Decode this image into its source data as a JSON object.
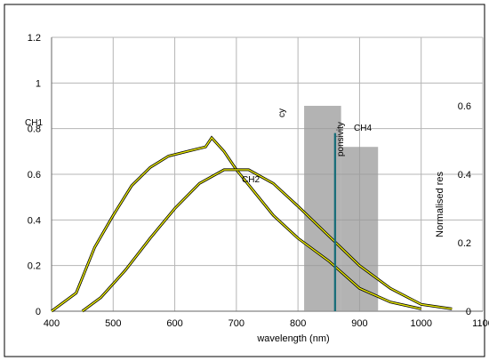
{
  "chart_data": {
    "type": "line",
    "title": "",
    "xlabel": "wavelength (nm)",
    "ylabel_right": "Normalised res",
    "y_left": {
      "ticks": [
        "0",
        "0.2",
        "0.4",
        "0.6",
        "0.8",
        "1",
        "1.2"
      ],
      "lim": [
        0,
        1.2
      ]
    },
    "y_right": {
      "ticks": [
        "0",
        "0.2",
        "0.4",
        "0.6"
      ],
      "lim": [
        0,
        0.8
      ]
    },
    "x_ticks": [
      "400",
      "500",
      "600",
      "700",
      "800",
      "900",
      "1000",
      "1100"
    ],
    "xlim": [
      400,
      1100
    ],
    "grid": true,
    "inline_labels": [
      "CH1",
      "CH2",
      "cy",
      "ponsivity",
      "CH4"
    ],
    "series": [
      {
        "label_ref": "CH2",
        "x": [
          400,
          440,
          470,
          500,
          530,
          560,
          590,
          620,
          650,
          660,
          680,
          700,
          730,
          760,
          800,
          850,
          900,
          950,
          1000
        ],
        "y": [
          0,
          0.08,
          0.28,
          0.42,
          0.55,
          0.63,
          0.68,
          0.7,
          0.72,
          0.76,
          0.7,
          0.62,
          0.52,
          0.42,
          0.32,
          0.22,
          0.1,
          0.04,
          0.01
        ]
      },
      {
        "label_ref": "CH1",
        "x": [
          450,
          480,
          520,
          560,
          600,
          640,
          680,
          720,
          760,
          800,
          850,
          900,
          950,
          1000,
          1050
        ],
        "y": [
          0,
          0.06,
          0.18,
          0.32,
          0.45,
          0.56,
          0.62,
          0.62,
          0.56,
          0.46,
          0.33,
          0.2,
          0.1,
          0.03,
          0.01
        ]
      }
    ],
    "bar_overlays": [
      {
        "x0": 810,
        "x1": 870,
        "y0": 0.9,
        "y1": 0.0
      },
      {
        "x0": 870,
        "x1": 930,
        "y0": 0.72,
        "y1": 0.0
      }
    ],
    "vertical_markers": [
      860,
      860.5
    ],
    "colors": {
      "curve_outline": "#000000",
      "curve_fill": "#e8e800",
      "marker": "#1a6f7a",
      "grid": "#b5b5b5",
      "bars": "#9a9a9a"
    }
  }
}
